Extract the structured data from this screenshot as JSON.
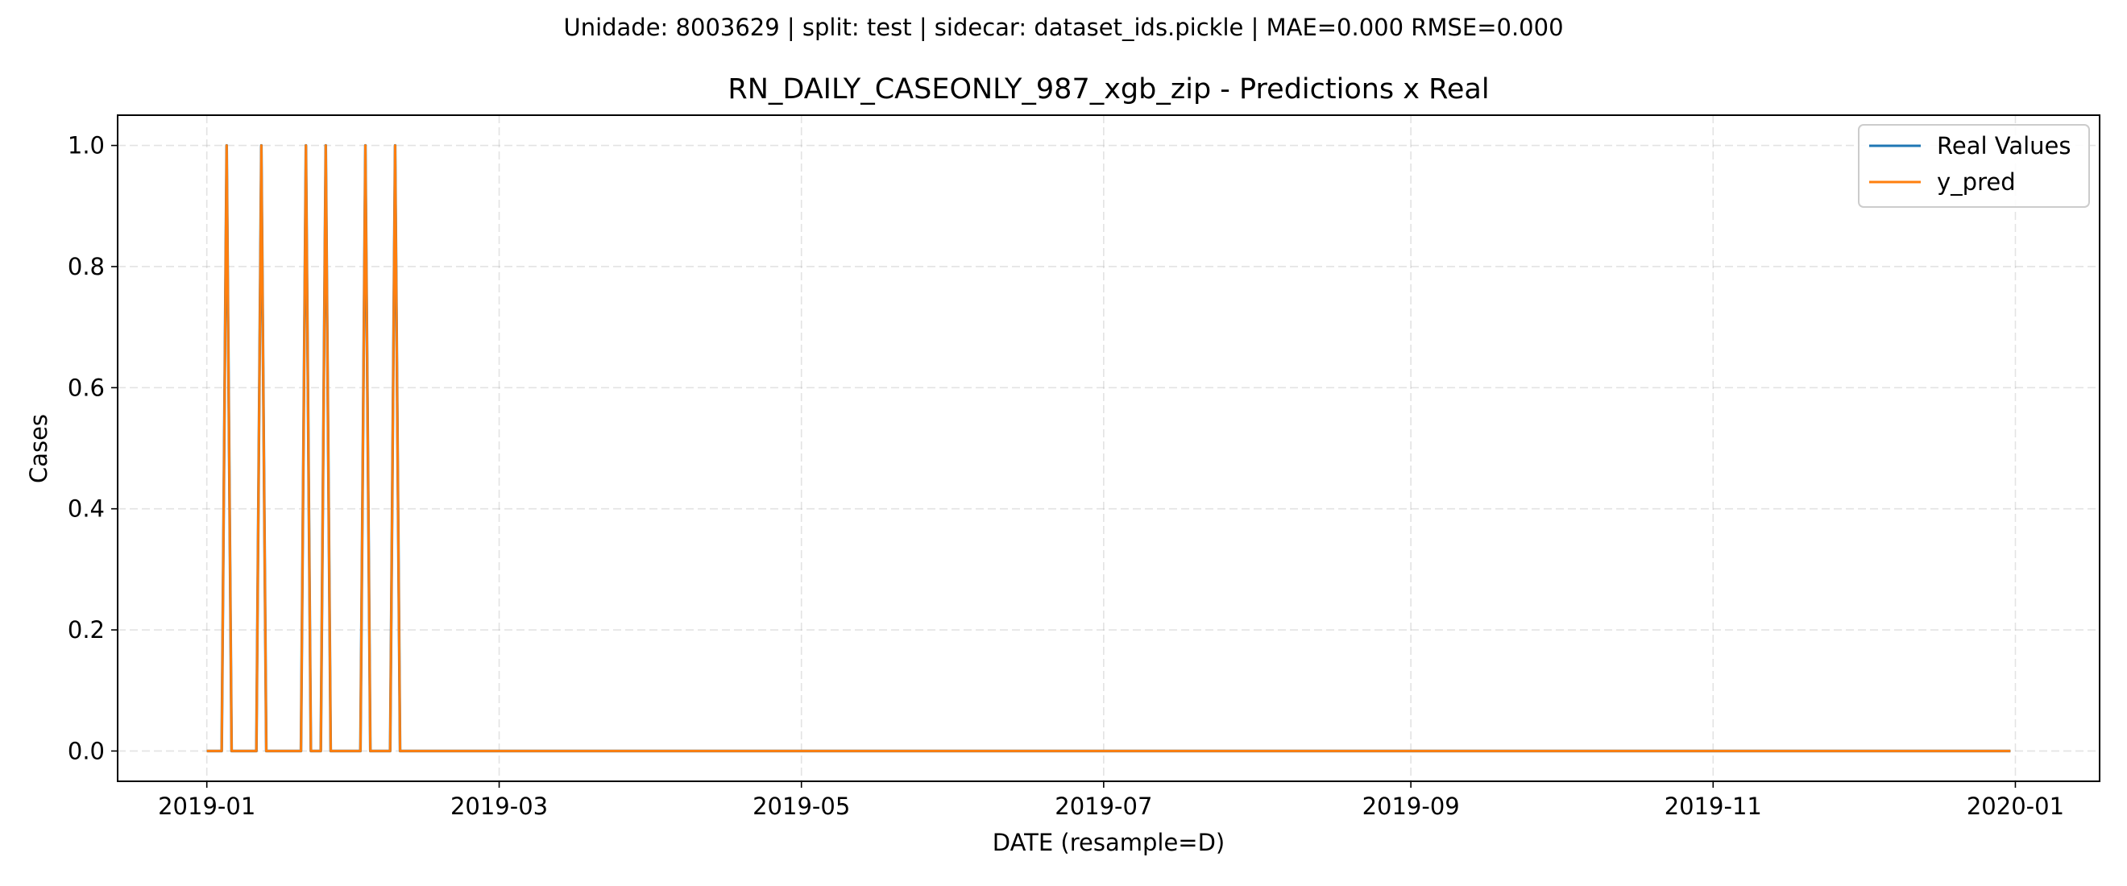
{
  "suptitle": "Unidade: 8003629 | split: test | sidecar: dataset_ids.pickle | MAE=0.000  RMSE=0.000",
  "chart_data": {
    "type": "line",
    "title": "RN_DAILY_CASEONLY_987_xgb_zip - Predictions x Real",
    "xlabel": "DATE (resample=D)",
    "ylabel": "Cases",
    "x_range": [
      "2019-01-01",
      "2019-12-31"
    ],
    "xlim": [
      "2018-12-14",
      "2020-01-18"
    ],
    "ylim": [
      -0.05,
      1.05
    ],
    "x_ticks": [
      "2019-01",
      "2019-03",
      "2019-05",
      "2019-07",
      "2019-09",
      "2019-11",
      "2020-01"
    ],
    "y_ticks": [
      "0.0",
      "0.2",
      "0.4",
      "0.6",
      "0.8",
      "1.0"
    ],
    "grid": true,
    "legend_position": "top-right",
    "nonzero_dates": [
      "2019-01-05",
      "2019-01-12",
      "2019-01-21",
      "2019-01-25",
      "2019-02-02",
      "2019-02-08"
    ],
    "nonzero_value": 1.0,
    "default_value": 0.0,
    "series": [
      {
        "name": "Real Values",
        "color": "#1f77b4"
      },
      {
        "name": "y_pred",
        "color": "#ff7f0e"
      }
    ]
  }
}
